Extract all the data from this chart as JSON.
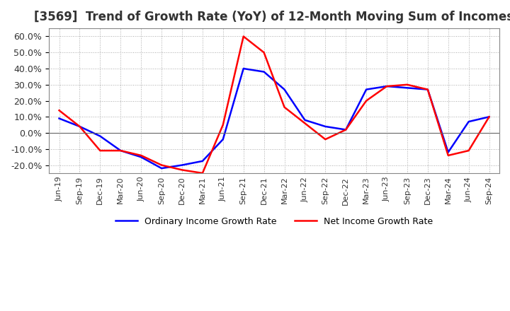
{
  "title": "[3569]  Trend of Growth Rate (YoY) of 12-Month Moving Sum of Incomes",
  "title_fontsize": 12,
  "ylim": [
    -0.25,
    0.65
  ],
  "yticks": [
    -0.2,
    -0.1,
    0.0,
    0.1,
    0.2,
    0.3,
    0.4,
    0.5,
    0.6
  ],
  "background_color": "#ffffff",
  "plot_bg_color": "#ffffff",
  "grid_color": "#aaaaaa",
  "legend_labels": [
    "Ordinary Income Growth Rate",
    "Net Income Growth Rate"
  ],
  "legend_colors": [
    "#0000ff",
    "#ff0000"
  ],
  "dates": [
    "Jun-19",
    "Sep-19",
    "Dec-19",
    "Mar-20",
    "Jun-20",
    "Sep-20",
    "Dec-20",
    "Mar-21",
    "Jun-21",
    "Sep-21",
    "Dec-21",
    "Mar-22",
    "Jun-22",
    "Sep-22",
    "Dec-22",
    "Mar-23",
    "Jun-23",
    "Sep-23",
    "Dec-23",
    "Mar-24",
    "Jun-24",
    "Sep-24"
  ],
  "ordinary_income": [
    0.09,
    0.04,
    -0.02,
    -0.11,
    -0.15,
    -0.22,
    -0.2,
    -0.175,
    -0.04,
    0.4,
    0.38,
    0.27,
    0.08,
    0.04,
    0.02,
    0.27,
    0.29,
    0.28,
    0.27,
    -0.12,
    0.07,
    0.1
  ],
  "net_income": [
    0.14,
    0.04,
    -0.11,
    -0.11,
    -0.14,
    -0.2,
    -0.23,
    -0.25,
    0.05,
    0.6,
    0.5,
    0.16,
    0.06,
    -0.04,
    0.02,
    0.2,
    0.29,
    0.3,
    0.27,
    -0.14,
    -0.11,
    0.1
  ]
}
